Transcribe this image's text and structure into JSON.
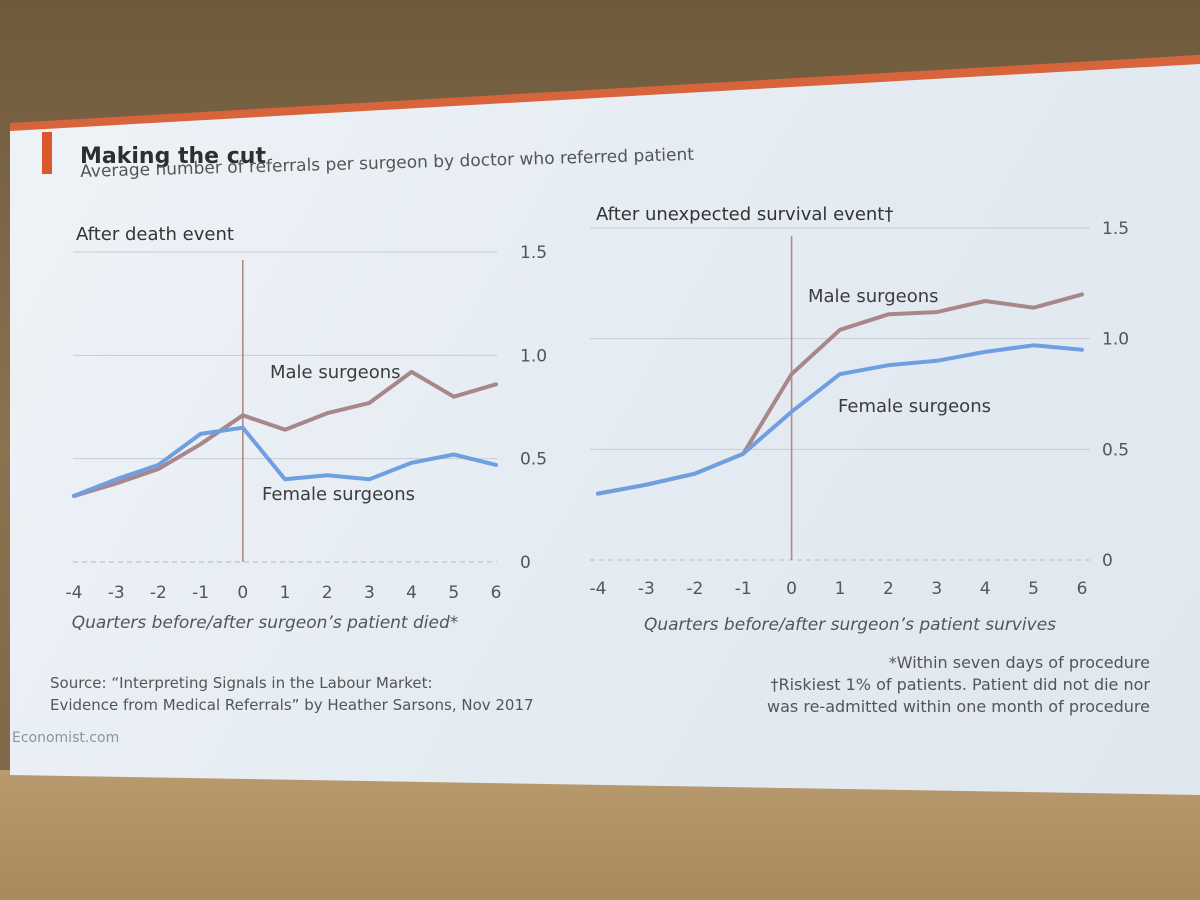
{
  "title": "Making the cut",
  "subtitle": "Average number of referrals per surgeon by doctor who referred patient",
  "source_line1": "Source: “Interpreting Signals in the Labour Market:",
  "source_line2": "Evidence from Medical Referrals” by Heather Sarsons, Nov 2017",
  "note1": "*Within seven days of procedure",
  "note2": "†Riskiest 1% of patients. Patient did not die nor",
  "note3": "was re-admitted within one month of procedure",
  "brand": "Economist.com",
  "colors": {
    "male": "#a8878a",
    "female": "#6f9fe0",
    "accent": "#d9582e",
    "grid": "#c6ccd3",
    "event_line": "#b08a84"
  },
  "chart_data": [
    {
      "type": "line",
      "title": "After death event",
      "xlabel": "Quarters before/after surgeon’s patient died*",
      "ylabel": "",
      "x": [
        -4,
        -3,
        -2,
        -1,
        0,
        1,
        2,
        3,
        4,
        5,
        6
      ],
      "ylim": [
        0,
        1.5
      ],
      "yticks": [
        "0",
        "0.5",
        "1.0",
        "1.5"
      ],
      "event_x": 0,
      "series": [
        {
          "name": "Male surgeons",
          "values": [
            0.32,
            0.38,
            0.45,
            0.57,
            0.71,
            0.64,
            0.72,
            0.77,
            0.92,
            0.8,
            0.86
          ]
        },
        {
          "name": "Female surgeons",
          "values": [
            0.32,
            0.4,
            0.47,
            0.62,
            0.65,
            0.4,
            0.42,
            0.4,
            0.48,
            0.52,
            0.47
          ]
        }
      ]
    },
    {
      "type": "line",
      "title": "After unexpected survival event†",
      "xlabel": "Quarters before/after surgeon’s patient survives",
      "ylabel": "",
      "x": [
        -4,
        -3,
        -2,
        -1,
        0,
        1,
        2,
        3,
        4,
        5,
        6
      ],
      "ylim": [
        0,
        1.5
      ],
      "yticks": [
        "0",
        "0.5",
        "1.0",
        "1.5"
      ],
      "event_x": 0,
      "series": [
        {
          "name": "Male surgeons",
          "values": [
            0.3,
            0.34,
            0.39,
            0.48,
            0.84,
            1.04,
            1.11,
            1.12,
            1.17,
            1.14,
            1.2
          ]
        },
        {
          "name": "Female surgeons",
          "values": [
            0.3,
            0.34,
            0.39,
            0.48,
            0.67,
            0.84,
            0.88,
            0.9,
            0.94,
            0.97,
            0.95
          ]
        }
      ]
    }
  ]
}
